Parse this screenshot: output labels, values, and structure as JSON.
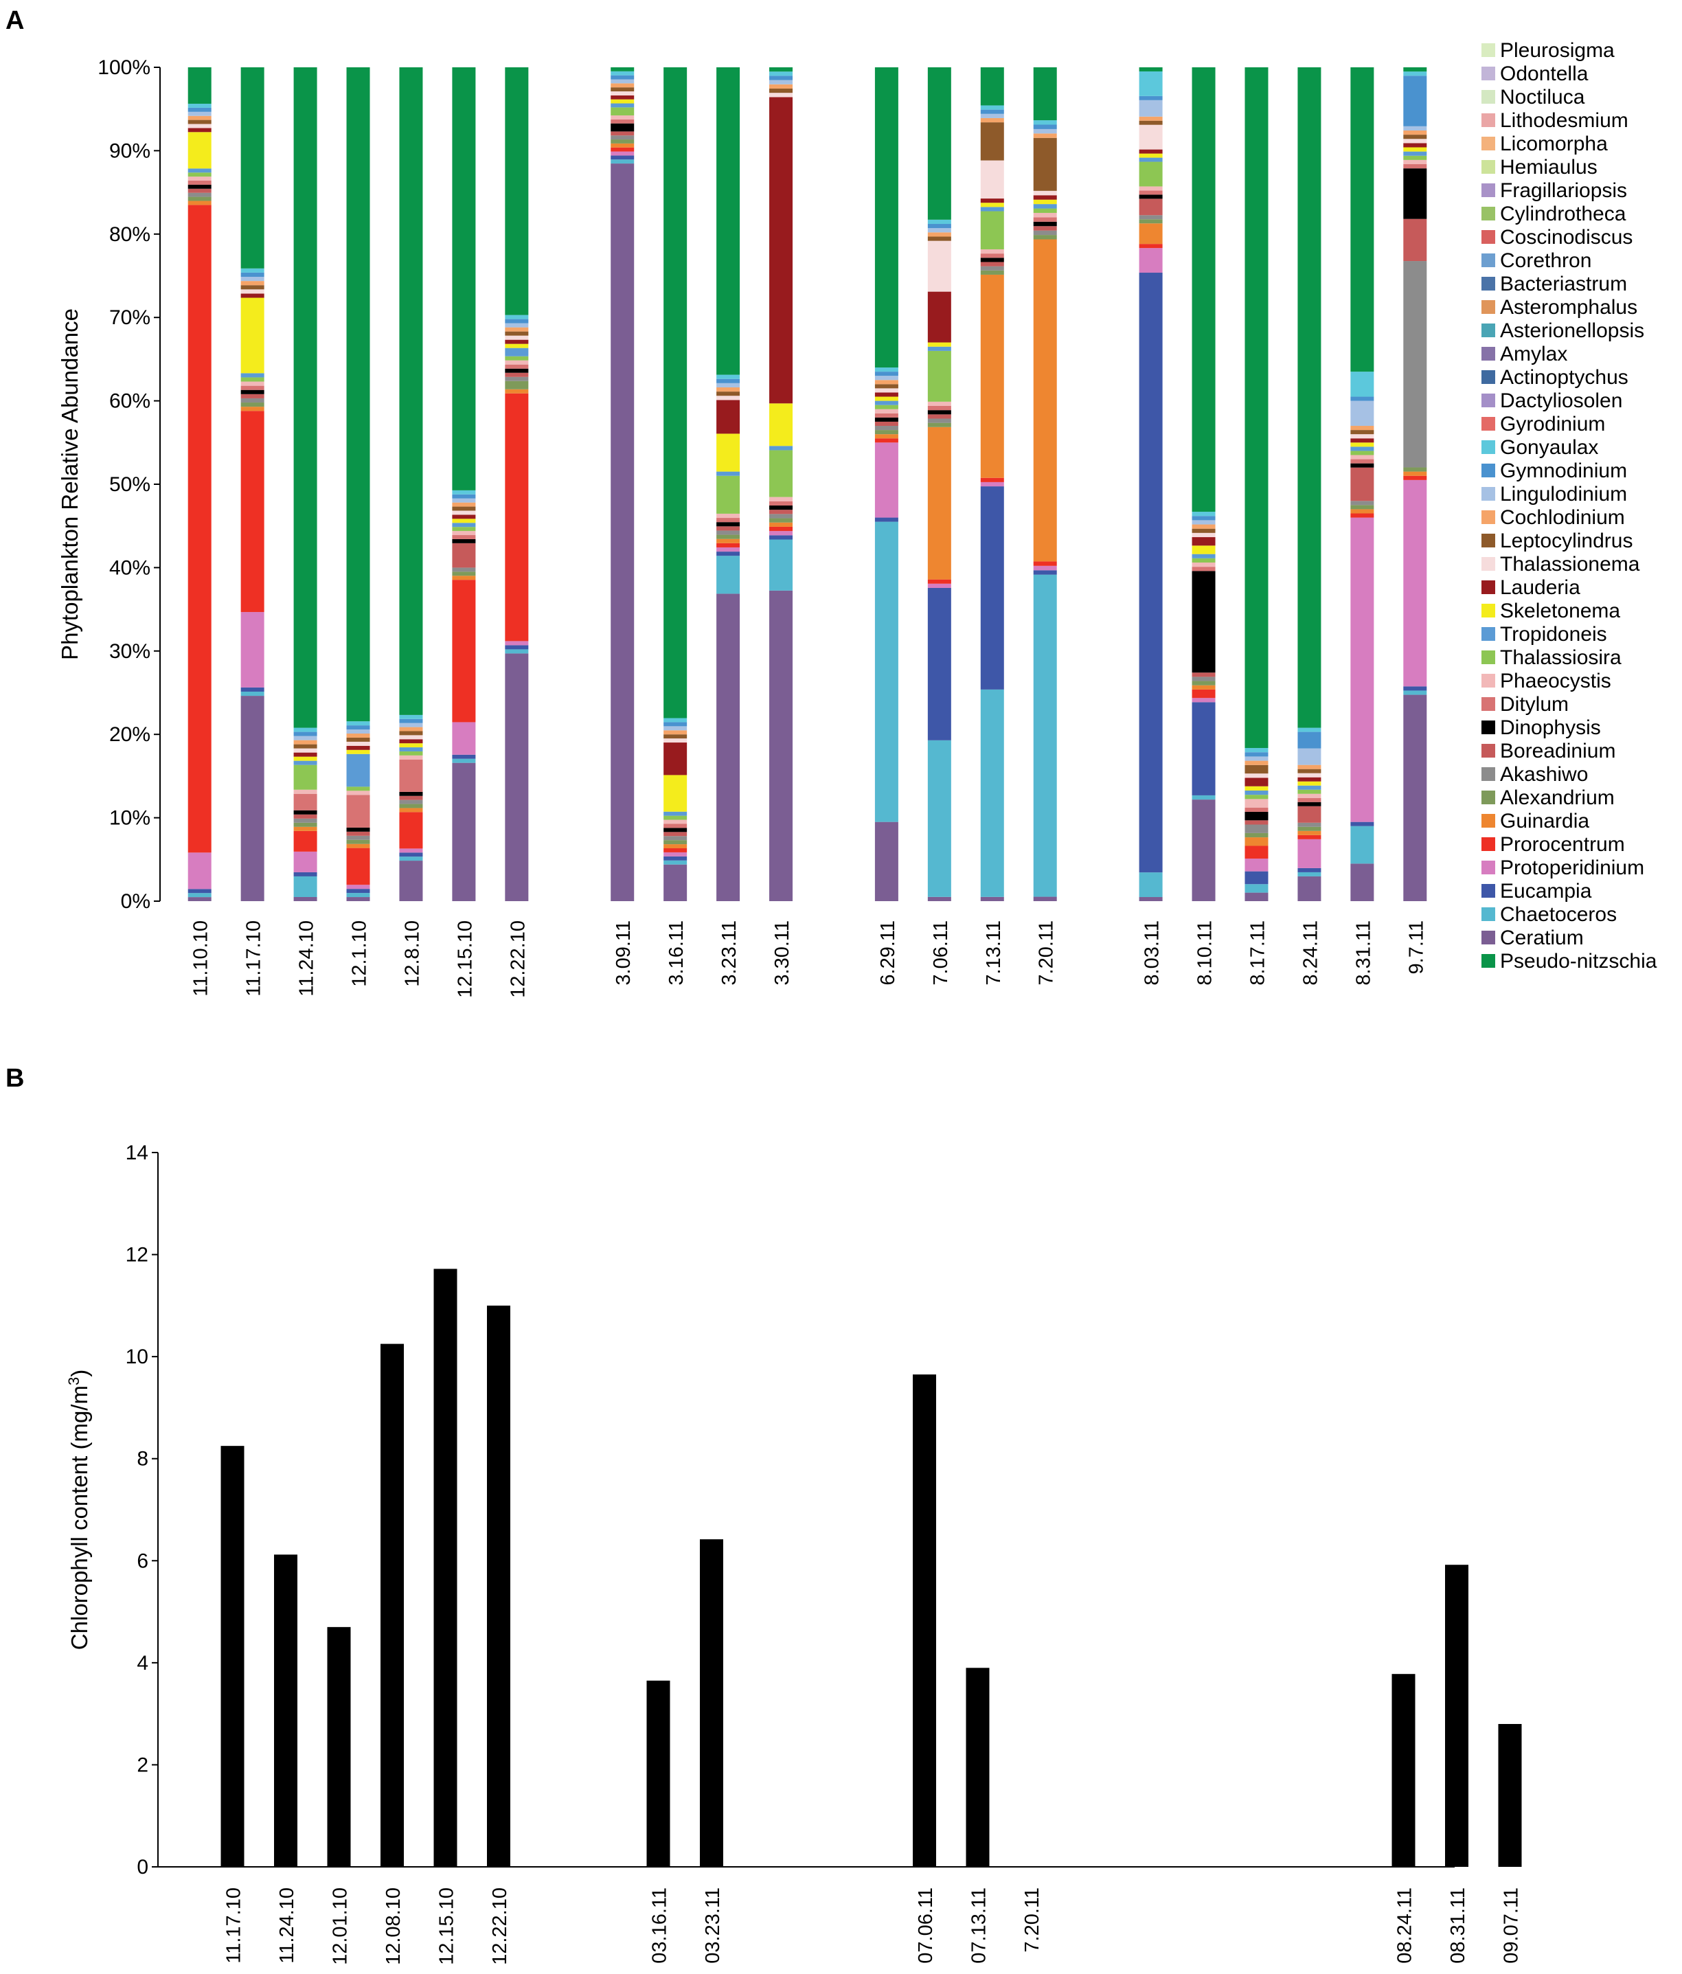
{
  "panel_a_letter": "A",
  "panel_b_letter": "B",
  "chart_data": [
    {
      "type": "stacked-bar",
      "title": "",
      "ylabel": "Phytoplankton Relative Abundance",
      "ylim": [
        0,
        100
      ],
      "yticks": [
        "0%",
        "10%",
        "20%",
        "30%",
        "40%",
        "50%",
        "60%",
        "70%",
        "80%",
        "90%",
        "100%"
      ],
      "categories": [
        "11.10.10",
        "11.17.10",
        "11.24.10",
        "12.1.10",
        "12.8.10",
        "12.15.10",
        "12.22.10",
        "3.09.11",
        "3.16.11",
        "3.23.11",
        "3.30.11",
        "6.29.11",
        "7.06.11",
        "7.13.11",
        "7.20.11",
        "8.03.11",
        "8.10.11",
        "8.17.11",
        "8.24.11",
        "8.31.11",
        "9.7.11"
      ],
      "category_groups": [
        [
          0,
          1,
          2,
          3,
          4,
          5,
          6
        ],
        [
          7,
          8,
          9,
          10
        ],
        [
          11,
          12,
          13,
          14
        ],
        [
          15,
          16,
          17,
          18,
          19,
          20
        ]
      ],
      "legend": [
        "Pleurosigma",
        "Odontella",
        "Noctiluca",
        "Lithodesmium",
        "Licomorpha",
        "Hemiaulus",
        "Fragillariopsis",
        "Cylindrotheca",
        "Coscinodiscus",
        "Corethron",
        "Bacteriastrum",
        "Asteromphalus",
        "Asterionellopsis",
        "Amylax",
        "Actinoptychus",
        "Dactyliosolen",
        "Gyrodinium",
        "Gonyaulax",
        "Gymnodinium",
        "Lingulodinium",
        "Cochlodinium",
        "Leptocylindrus",
        "Thalassionema",
        "Lauderia",
        "Skeletonema",
        "Tropidoneis",
        "Thalassiosira",
        "Phaeocystis",
        "Ditylum",
        "Dinophysis",
        "Boreadinium",
        "Akashiwo",
        "Alexandrium",
        "Guinardia",
        "Prorocentrum",
        "Protoperidinium",
        "Eucampia",
        "Chaetoceros",
        "Ceratium",
        "Pseudo-nitzschia"
      ],
      "colors": {
        "Pleurosigma": "#d9ecc0",
        "Odontella": "#c2b5d8",
        "Noctiluca": "#d4e8c2",
        "Lithodesmium": "#eaa6a6",
        "Licomorpha": "#f4b27c",
        "Hemiaulus": "#cde39a",
        "Fragillariopsis": "#a992c8",
        "Cylindrotheca": "#99c266",
        "Coscinodiscus": "#d9605e",
        "Corethron": "#6d9fd0",
        "Bacteriastrum": "#4a73a8",
        "Asteromphalus": "#e0955a",
        "Asterionellopsis": "#4aa5b5",
        "Amylax": "#8672a8",
        "Actinoptychus": "#3f6aa0",
        "Dactyliosolen": "#a48fc8",
        "Gyrodinium": "#e46a66",
        "Gonyaulax": "#5cc8dc",
        "Gymnodinium": "#4a92cf",
        "Lingulodinium": "#a6c1e4",
        "Cochlodinium": "#f5a468",
        "Leptocylindrus": "#8e5a2a",
        "Thalassionema": "#f6dcdc",
        "Lauderia": "#981b1e",
        "Skeletonema": "#f4ec1c",
        "Tropidoneis": "#5b9bd5",
        "Thalassiosira": "#8dc653",
        "Phaeocystis": "#f2b8b8",
        "Ditylum": "#d87373",
        "Dinophysis": "#000000",
        "Boreadinium": "#c65a5a",
        "Akashiwo": "#8c8c8c",
        "Alexandrium": "#7e9a5a",
        "Guinardia": "#ee8630",
        "Prorocentrum": "#ee3024",
        "Protoperidinium": "#d77dc0",
        "Eucampia": "#3e57a8",
        "Chaetoceros": "#55b8d0",
        "Ceratium": "#7b5e93",
        "Pseudo-nitzschia": "#0a9449"
      },
      "series_values": [
        {
          "name": "Ceratium",
          "values": [
            0.5,
            24.5,
            0.5,
            0.5,
            5,
            17,
            30,
            92,
            4.5,
            36.5,
            36.5,
            9.5,
            0.5,
            0.5,
            0.5,
            0.5,
            12,
            1,
            3,
            4.5,
            24.5
          ]
        },
        {
          "name": "Chaetoceros",
          "values": [
            0.5,
            0.5,
            2.5,
            0.5,
            0.5,
            0.5,
            0.5,
            0.5,
            0.5,
            4.5,
            6,
            36,
            18.5,
            24.5,
            36.5,
            3,
            0.5,
            1,
            0.5,
            4.5,
            0.5
          ]
        },
        {
          "name": "Eucampia",
          "values": [
            0.5,
            0.5,
            0.5,
            0.5,
            0.5,
            0.5,
            0.5,
            0.5,
            0.5,
            0.5,
            0.5,
            0.5,
            18,
            24,
            0.5,
            73,
            11,
            1.5,
            0.5,
            0.5,
            0.5
          ]
        },
        {
          "name": "Protoperidinium",
          "values": [
            4.5,
            9,
            2.5,
            0.5,
            0.5,
            4,
            0.5,
            0.5,
            0.5,
            0.5,
            0.5,
            9,
            0.5,
            0.5,
            0.5,
            3,
            0.5,
            1.5,
            3.5,
            36.5,
            24.5
          ]
        },
        {
          "name": "Prorocentrum",
          "values": [
            80,
            24,
            2.5,
            4.5,
            4.5,
            17.5,
            30,
            0.5,
            0.5,
            0.5,
            0.5,
            0.5,
            0.5,
            0.5,
            0.5,
            0.5,
            1,
            1.5,
            0.5,
            0.5,
            0.5
          ]
        },
        {
          "name": "Guinardia",
          "values": [
            0.5,
            0.5,
            0.5,
            0.5,
            0.5,
            0.5,
            0.5,
            0.5,
            0.5,
            0.5,
            0.5,
            0.5,
            18,
            24,
            36.5,
            2.5,
            0.5,
            1,
            0.5,
            0.5,
            0.5
          ]
        },
        {
          "name": "Alexandrium",
          "values": [
            0.5,
            0.5,
            0.5,
            0.5,
            0.5,
            0.5,
            1,
            0.5,
            0.5,
            0.5,
            0.5,
            0.5,
            0.5,
            0.5,
            0.5,
            0.5,
            0.5,
            0.5,
            0.5,
            0.5,
            0.5
          ]
        },
        {
          "name": "Akashiwo",
          "values": [
            0.5,
            0.5,
            0.5,
            0.5,
            0.5,
            0.5,
            0.5,
            0.5,
            0.5,
            0.5,
            0.5,
            0.5,
            0.5,
            0.5,
            0.5,
            0.5,
            0.5,
            1,
            0.5,
            0.5,
            24.5
          ]
        },
        {
          "name": "Boreadinium",
          "values": [
            0.5,
            0.5,
            0.5,
            0.5,
            0.5,
            3,
            0.5,
            0.5,
            0.5,
            0.5,
            0.5,
            0.5,
            0.5,
            0.5,
            0.5,
            2,
            0.5,
            0.5,
            2,
            4,
            5
          ]
        },
        {
          "name": "Dinophysis",
          "values": [
            0.5,
            0.5,
            0.5,
            0.5,
            0.5,
            0.5,
            0.5,
            1,
            0.5,
            0.5,
            0.5,
            0.5,
            0.5,
            0.5,
            0.5,
            0.5,
            12,
            1,
            0.5,
            0.5,
            6
          ]
        },
        {
          "name": "Ditylum",
          "values": [
            0.5,
            0.5,
            2,
            4,
            4,
            0.5,
            0.5,
            0.5,
            0.5,
            0.5,
            0.5,
            0.5,
            0.5,
            0.5,
            0.5,
            0.5,
            0.5,
            0.5,
            0.5,
            0.5,
            0.5
          ]
        },
        {
          "name": "Phaeocystis",
          "values": [
            0.5,
            0.5,
            0.5,
            0.5,
            0.5,
            0.5,
            0.5,
            0.5,
            0.5,
            0.5,
            0.5,
            0.5,
            0.5,
            0.5,
            0.5,
            0.5,
            0.5,
            1,
            0.5,
            0.5,
            0.5
          ]
        },
        {
          "name": "Thalassiosira",
          "values": [
            0.5,
            0.5,
            3,
            0.5,
            0.5,
            0.5,
            0.5,
            1,
            0.5,
            4.5,
            5.5,
            0.5,
            6,
            4.5,
            0.5,
            3,
            0.5,
            0.5,
            0.5,
            0.5,
            0.5
          ]
        },
        {
          "name": "Tropidoneis",
          "values": [
            0.5,
            0.5,
            0.5,
            4,
            0.5,
            0.5,
            1,
            0.5,
            0.5,
            0.5,
            0.5,
            0.5,
            0.5,
            0.5,
            0.5,
            0.5,
            0.5,
            0.5,
            0.5,
            0.5,
            0.5
          ]
        },
        {
          "name": "Skeletonema",
          "values": [
            4.5,
            9,
            0.5,
            0.5,
            0.5,
            0.5,
            0.5,
            0.5,
            4.5,
            4.5,
            5,
            0.5,
            0.5,
            0.5,
            0.5,
            0.5,
            1,
            0.5,
            0.5,
            0.5,
            0.5
          ]
        },
        {
          "name": "Lauderia",
          "values": [
            0.5,
            0.5,
            0.5,
            0.5,
            0.5,
            0.5,
            0.5,
            0.5,
            4,
            4,
            36,
            0.5,
            6,
            0.5,
            0.5,
            0.5,
            1,
            1,
            0.5,
            0.5,
            0.5
          ]
        },
        {
          "name": "Thalassionema",
          "values": [
            0.5,
            0.5,
            0.5,
            0.5,
            0.5,
            0.5,
            0.5,
            0.5,
            0.5,
            0.5,
            0.5,
            0.5,
            6,
            4.5,
            0.5,
            3,
            0.5,
            0.5,
            0.5,
            0.5,
            0.5
          ]
        },
        {
          "name": "Leptocylindrus",
          "values": [
            0.5,
            0.5,
            0.5,
            0.5,
            0.5,
            0.5,
            0.5,
            0.5,
            0.5,
            0.5,
            0.5,
            0.5,
            0.5,
            4.5,
            6,
            0.5,
            0.5,
            1,
            0.5,
            0.5,
            0.5
          ]
        },
        {
          "name": "Cochlodinium",
          "values": [
            0.5,
            0.5,
            0.5,
            0.5,
            0.5,
            0.5,
            0.5,
            0.5,
            0.5,
            0.5,
            0.5,
            0.5,
            0.5,
            0.5,
            0.5,
            0.5,
            0.5,
            0.5,
            0.5,
            0.5,
            0.5
          ]
        },
        {
          "name": "Lingulodinium",
          "values": [
            0.5,
            0.5,
            0.5,
            0.5,
            0.5,
            0.5,
            0.5,
            0.5,
            0.5,
            0.5,
            0.5,
            0.5,
            0.5,
            0.5,
            0.5,
            2,
            0.5,
            0.5,
            2,
            3,
            0.5
          ]
        },
        {
          "name": "Gymnodinium",
          "values": [
            0.5,
            0.5,
            0.5,
            0.5,
            0.5,
            0.5,
            0.5,
            0.5,
            0.5,
            0.5,
            0.5,
            0.5,
            0.5,
            0.5,
            0.5,
            0.5,
            0.5,
            0.5,
            2,
            0.5,
            6
          ]
        },
        {
          "name": "Gonyaulax",
          "values": [
            0.5,
            0.5,
            0.5,
            0.5,
            0.5,
            0.5,
            0.5,
            0.5,
            0.5,
            0.5,
            0.5,
            0.5,
            0.5,
            0.5,
            0.5,
            3,
            0.5,
            0.5,
            0.5,
            3,
            0.5
          ]
        },
        {
          "name": "Pseudo-nitzschia",
          "values": [
            4.5,
            24,
            80,
            80,
            80,
            52,
            30,
            0.5,
            80,
            36.5,
            0.5,
            36,
            18,
            4.5,
            6,
            0.5,
            52.5,
            80,
            80,
            36.5,
            0.5
          ]
        }
      ]
    },
    {
      "type": "bar",
      "title": "",
      "ylabel": "Chlorophyll content (mg/m",
      "ylabel_sup": "3",
      "ylabel_end": ")",
      "ylim": [
        0,
        14
      ],
      "yticks": [
        "0",
        "2",
        "4",
        "6",
        "8",
        "10",
        "12",
        "14"
      ],
      "categories": [
        "11.17.10",
        "11.24.10",
        "12.01.10",
        "12.08.10",
        "12.15.10",
        "12.22.10",
        "03.16.11",
        "03.23.11",
        "07.06.11",
        "07.13.11",
        "7.20.11",
        "08.24.11",
        "08.31.11",
        "09.07.11"
      ],
      "values": [
        8.25,
        6.12,
        4.7,
        10.25,
        11.72,
        11.0,
        3.65,
        6.42,
        9.65,
        3.9,
        0,
        3.78,
        5.92,
        2.8
      ],
      "slot_index": [
        1,
        2,
        3,
        4,
        5,
        6,
        9,
        10,
        14,
        15,
        16,
        23,
        24,
        25
      ],
      "bar_color": "#000000"
    }
  ]
}
